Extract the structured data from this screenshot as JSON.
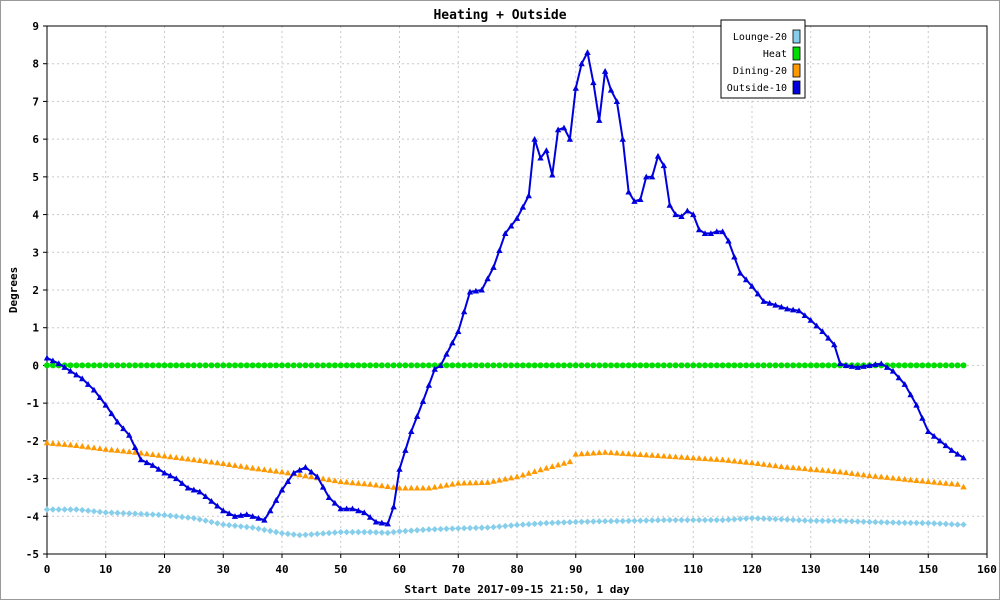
{
  "chart_data": {
    "type": "line",
    "title": "Heating + Outside",
    "xlabel": "Start Date 2017-09-15 21:50, 1 day",
    "ylabel": "Degrees",
    "xlim": [
      0,
      160
    ],
    "ylim": [
      -5,
      9
    ],
    "xticks": [
      0,
      10,
      20,
      30,
      40,
      50,
      60,
      70,
      80,
      90,
      100,
      110,
      120,
      130,
      140,
      150,
      160
    ],
    "yticks": [
      -5,
      -4,
      -3,
      -2,
      -1,
      0,
      1,
      2,
      3,
      4,
      5,
      6,
      7,
      8,
      9
    ],
    "grid": true,
    "legend_position": "top-right",
    "series": [
      {
        "name": "Lounge-20",
        "color": "#87ceeb",
        "marker": "diamond",
        "x": [
          0,
          5,
          10,
          15,
          20,
          25,
          30,
          35,
          40,
          43,
          45,
          50,
          55,
          58,
          60,
          65,
          70,
          75,
          80,
          85,
          90,
          95,
          100,
          105,
          110,
          115,
          120,
          125,
          130,
          135,
          140,
          145,
          150,
          155,
          156
        ],
        "values": [
          -3.82,
          -3.82,
          -3.9,
          -3.93,
          -3.97,
          -4.05,
          -4.22,
          -4.3,
          -4.45,
          -4.5,
          -4.48,
          -4.42,
          -4.42,
          -4.44,
          -4.4,
          -4.35,
          -4.32,
          -4.3,
          -4.23,
          -4.18,
          -4.15,
          -4.13,
          -4.12,
          -4.1,
          -4.1,
          -4.1,
          -4.05,
          -4.08,
          -4.12,
          -4.12,
          -4.15,
          -4.17,
          -4.18,
          -4.22,
          -4.22
        ]
      },
      {
        "name": "Heat",
        "color": "#00dd00",
        "marker": "circle",
        "x": [
          0,
          156
        ],
        "values": [
          0,
          0
        ]
      },
      {
        "name": "Dining-20",
        "color": "#ff9900",
        "marker": "triangle",
        "x": [
          0,
          5,
          10,
          15,
          20,
          25,
          30,
          35,
          40,
          45,
          50,
          55,
          60,
          65,
          70,
          75,
          80,
          85,
          89,
          90,
          95,
          100,
          105,
          110,
          115,
          120,
          125,
          130,
          135,
          140,
          145,
          150,
          155,
          156
        ],
        "values": [
          -2.05,
          -2.12,
          -2.22,
          -2.3,
          -2.4,
          -2.5,
          -2.6,
          -2.72,
          -2.82,
          -2.95,
          -3.08,
          -3.15,
          -3.25,
          -3.25,
          -3.12,
          -3.1,
          -2.95,
          -2.72,
          -2.55,
          -2.35,
          -2.3,
          -2.35,
          -2.4,
          -2.45,
          -2.5,
          -2.58,
          -2.68,
          -2.75,
          -2.82,
          -2.92,
          -3.0,
          -3.08,
          -3.15,
          -3.22
        ]
      },
      {
        "name": "Outside-10",
        "color": "#0000dd",
        "marker": "triangle",
        "x": [
          0,
          2,
          4,
          6,
          8,
          10,
          12,
          14,
          16,
          18,
          20,
          22,
          24,
          26,
          28,
          30,
          32,
          34,
          36,
          37,
          38,
          40,
          42,
          44,
          46,
          48,
          50,
          52,
          54,
          56,
          58,
          59,
          60,
          62,
          64,
          66,
          67,
          68,
          70,
          72,
          74,
          76,
          78,
          80,
          82,
          83,
          84,
          85,
          86,
          87,
          88,
          89,
          90,
          91,
          92,
          93,
          94,
          95,
          96,
          97,
          98,
          99,
          100,
          101,
          102,
          103,
          104,
          105,
          106,
          107,
          108,
          109,
          110,
          111,
          112,
          113,
          114,
          115,
          116,
          118,
          120,
          122,
          124,
          126,
          128,
          130,
          132,
          134,
          135,
          136,
          138,
          140,
          142,
          144,
          146,
          148,
          150,
          152,
          154,
          156
        ],
        "values": [
          0.2,
          0.05,
          -0.15,
          -0.35,
          -0.65,
          -1.05,
          -1.5,
          -1.85,
          -2.5,
          -2.65,
          -2.85,
          -3.0,
          -3.25,
          -3.35,
          -3.6,
          -3.85,
          -4.0,
          -3.95,
          -4.05,
          -4.1,
          -3.85,
          -3.3,
          -2.85,
          -2.7,
          -2.95,
          -3.5,
          -3.8,
          -3.8,
          -3.9,
          -4.15,
          -4.2,
          -3.75,
          -2.75,
          -1.75,
          -0.95,
          -0.1,
          0.0,
          0.3,
          0.9,
          1.95,
          2.0,
          2.6,
          3.5,
          3.9,
          4.5,
          6.0,
          5.5,
          5.7,
          5.05,
          6.25,
          6.3,
          6.0,
          7.35,
          8.0,
          8.3,
          7.5,
          6.5,
          7.8,
          7.3,
          7.0,
          6.0,
          4.6,
          4.35,
          4.4,
          5.0,
          5.0,
          5.55,
          5.3,
          4.25,
          4.0,
          3.95,
          4.1,
          4.0,
          3.6,
          3.5,
          3.5,
          3.55,
          3.55,
          3.3,
          2.45,
          2.1,
          1.7,
          1.6,
          1.5,
          1.45,
          1.2,
          0.9,
          0.55,
          0.05,
          0.0,
          -0.05,
          0.0,
          0.05,
          -0.15,
          -0.5,
          -1.05,
          -1.75,
          -2.0,
          -2.25,
          -2.45
        ]
      }
    ]
  }
}
